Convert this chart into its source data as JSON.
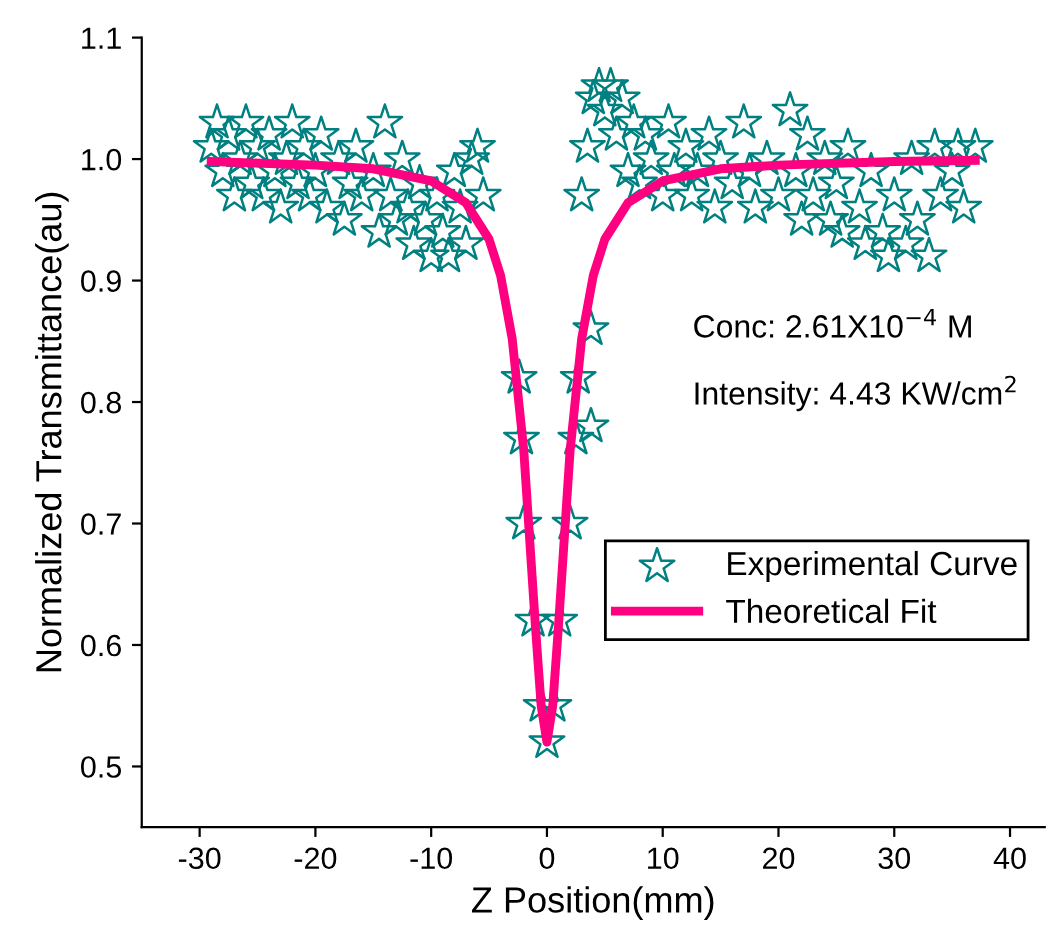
{
  "chart_data": {
    "type": "scatter",
    "xlabel": "Z Position(mm)",
    "ylabel": "Normalized Transmittance(au)",
    "annotations": [
      "Conc: 2.61X10$^{−4}$ M",
      "Intensity: 4.43 KW/cm$^{2}$"
    ],
    "xlim": [
      -35,
      43
    ],
    "ylim": [
      0.45,
      1.1
    ],
    "xticks": [
      -30,
      -20,
      -10,
      0,
      10,
      20,
      30,
      40
    ],
    "yticks": [
      {
        "value": 0.5,
        "label": "0.5"
      },
      {
        "value": 0.6,
        "label": "0.6"
      },
      {
        "value": 0.7,
        "label": "0.7"
      },
      {
        "value": 0.8,
        "label": "0.8"
      },
      {
        "value": 0.9,
        "label": "0.9"
      },
      {
        "value": 1.0,
        "label": "1.0"
      },
      {
        "value": 1.1,
        "label": "1.1"
      }
    ],
    "legend": "right",
    "grid": false,
    "series": [
      {
        "name": "Experimental Curve",
        "marker": "star",
        "color": "#008080",
        "x": [
          -29,
          -28.5,
          -28,
          -27.5,
          -27,
          -26.5,
          -26,
          -25.5,
          -25,
          -24.5,
          -24,
          -23.5,
          -23,
          -22.5,
          -22,
          -21.5,
          -21,
          -20.5,
          -20,
          -19.5,
          -19,
          -18,
          -17.5,
          -17,
          -16.5,
          -16,
          -15,
          -14.5,
          -14,
          -13.5,
          -13,
          -12.5,
          -12,
          -11.5,
          -11,
          -10.5,
          -10,
          -9.5,
          -9,
          -8.5,
          -8,
          -7.5,
          -7,
          -6.5,
          -6,
          -5.5,
          -2.4,
          -2.2,
          -2,
          -1.2,
          -0.5,
          0,
          0.6,
          1.1,
          2,
          2.5,
          2.7,
          3,
          3.5,
          3.8,
          3.8,
          4,
          4.5,
          5,
          5.5,
          6,
          6.5,
          7,
          7.5,
          8,
          8.5,
          9,
          10,
          10.5,
          11,
          12,
          12.5,
          13,
          14,
          14.5,
          15,
          16,
          17,
          17.5,
          18,
          19,
          20,
          21,
          21.5,
          22,
          22.5,
          23,
          24,
          24.5,
          25,
          25.5,
          26,
          27,
          27.5,
          28,
          29,
          29.5,
          30,
          31,
          31.5,
          32,
          33,
          33.5,
          34,
          35,
          35.5,
          36,
          37
        ],
        "values": [
          1.01,
          1.03,
          0.99,
          1.02,
          0.97,
          1.0,
          1.03,
          0.98,
          1.01,
          0.97,
          1.02,
          0.99,
          0.96,
          1.0,
          1.03,
          0.98,
          1.01,
          0.97,
          0.99,
          1.02,
          0.96,
          1.0,
          0.95,
          0.98,
          1.01,
          0.97,
          0.99,
          0.94,
          1.03,
          0.97,
          0.95,
          1.0,
          0.96,
          0.93,
          0.98,
          0.95,
          0.92,
          0.97,
          0.94,
          0.92,
          0.99,
          0.96,
          0.93,
          1.0,
          1.01,
          0.97,
          0.82,
          0.77,
          0.7,
          0.62,
          0.55,
          0.52,
          0.55,
          0.62,
          0.7,
          0.77,
          0.82,
          0.97,
          1.01,
          0.78,
          0.86,
          1.05,
          1.06,
          1.04,
          1.06,
          1.02,
          1.05,
          0.99,
          1.03,
          0.98,
          1.02,
          1.0,
          0.97,
          1.03,
          0.99,
          1.01,
          0.97,
          0.99,
          1.02,
          0.96,
          1.0,
          0.98,
          1.03,
          0.99,
          0.96,
          1.0,
          0.97,
          1.04,
          0.99,
          0.95,
          1.02,
          0.97,
          1.0,
          0.95,
          0.98,
          0.94,
          1.01,
          0.96,
          0.93,
          0.99,
          0.94,
          0.92,
          0.97,
          0.93,
          1.0,
          0.95,
          0.92,
          1.01,
          0.97,
          0.99,
          1.01,
          0.96,
          1.01
        ]
      },
      {
        "name": "Theoretical Fit",
        "type": "line",
        "line_style": "solid",
        "color": "#ff0080",
        "x": [
          -29,
          -20,
          -15,
          -10,
          -7,
          -5,
          -4,
          -3,
          -2,
          -1,
          -0.5,
          0,
          0.5,
          1,
          2,
          3,
          4,
          5,
          7,
          10,
          15,
          20,
          30,
          37
        ],
        "values": [
          0.998,
          0.995,
          0.992,
          0.982,
          0.964,
          0.934,
          0.904,
          0.852,
          0.76,
          0.616,
          0.55,
          0.52,
          0.55,
          0.616,
          0.76,
          0.852,
          0.904,
          0.934,
          0.964,
          0.982,
          0.992,
          0.995,
          0.998,
          0.999
        ]
      }
    ]
  }
}
